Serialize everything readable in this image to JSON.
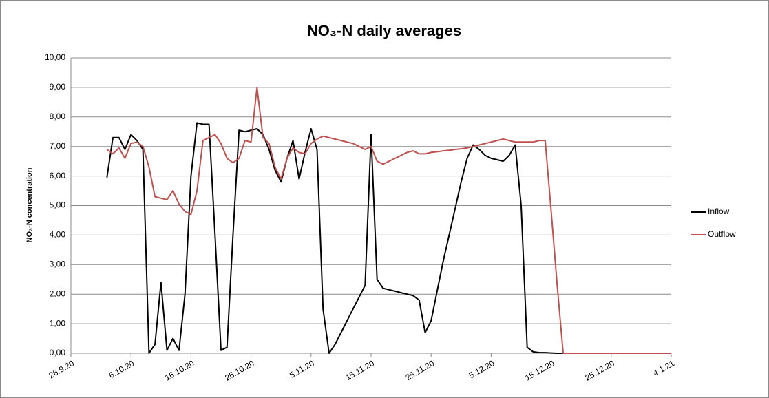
{
  "chart_data": {
    "type": "line",
    "title": "NO₃-N daily averages",
    "y_label": "NO₃-N concentration",
    "x": [
      "2020-10-02",
      "2020-10-03",
      "2020-10-04",
      "2020-10-05",
      "2020-10-06",
      "2020-10-07",
      "2020-10-08",
      "2020-10-09",
      "2020-10-10",
      "2020-10-11",
      "2020-10-12",
      "2020-10-13",
      "2020-10-14",
      "2020-10-15",
      "2020-10-16",
      "2020-10-17",
      "2020-10-18",
      "2020-10-19",
      "2020-10-20",
      "2020-10-21",
      "2020-10-22",
      "2020-10-23",
      "2020-10-24",
      "2020-10-25",
      "2020-10-26",
      "2020-10-27",
      "2020-10-28",
      "2020-10-29",
      "2020-10-30",
      "2020-10-31",
      "2020-11-01",
      "2020-11-02",
      "2020-11-03",
      "2020-11-04",
      "2020-11-05",
      "2020-11-06",
      "2020-11-07",
      "2020-11-08",
      "2020-11-09",
      "2020-11-10",
      "2020-11-11",
      "2020-11-12",
      "2020-11-13",
      "2020-11-14",
      "2020-11-15",
      "2020-11-16",
      "2020-11-17",
      "2020-11-18",
      "2020-11-19",
      "2020-11-20",
      "2020-11-21",
      "2020-11-22",
      "2020-11-23",
      "2020-11-24",
      "2020-11-25",
      "2020-11-26",
      "2020-11-27",
      "2020-11-28",
      "2020-11-29",
      "2020-11-30",
      "2020-12-01",
      "2020-12-02",
      "2020-12-03",
      "2020-12-04",
      "2020-12-05",
      "2020-12-06",
      "2020-12-07",
      "2020-12-08",
      "2020-12-09",
      "2020-12-10",
      "2020-12-11",
      "2020-12-12",
      "2020-12-13",
      "2020-12-14",
      "2020-12-15",
      "2020-12-16",
      "2020-12-17",
      "2021-01-04"
    ],
    "series": [
      {
        "name": "Inflow",
        "color": "#000000",
        "values": [
          5.95,
          7.3,
          7.3,
          6.9,
          7.4,
          7.2,
          6.9,
          0,
          0.3,
          2.4,
          0.1,
          0.5,
          0.1,
          2.0,
          6.0,
          7.8,
          7.75,
          7.75,
          4.0,
          0.1,
          0.2,
          4.0,
          7.55,
          7.5,
          7.55,
          7.6,
          7.4,
          6.9,
          6.2,
          5.8,
          6.6,
          7.2,
          5.9,
          6.8,
          7.6,
          6.9,
          1.5,
          0,
          0.3,
          0.7,
          1.1,
          1.5,
          1.9,
          2.3,
          7.4,
          2.5,
          2.2,
          2.15,
          2.1,
          2.05,
          2.0,
          1.95,
          1.8,
          0.7,
          1.1,
          2.1,
          3.1,
          4.0,
          4.9,
          5.8,
          6.6,
          7.05,
          6.9,
          6.7,
          6.6,
          6.55,
          6.5,
          6.7,
          7.05,
          5.0,
          0.2,
          0.05,
          0.02,
          0.02,
          0.01,
          0,
          0,
          0
        ]
      },
      {
        "name": "Outflow",
        "color": "#c0504d",
        "values": [
          6.9,
          6.75,
          6.95,
          6.6,
          7.1,
          7.15,
          7.0,
          6.3,
          5.3,
          5.25,
          5.2,
          5.5,
          5.05,
          4.8,
          4.7,
          5.5,
          7.2,
          7.3,
          7.4,
          7.1,
          6.6,
          6.45,
          6.6,
          7.2,
          7.15,
          9.0,
          7.3,
          7.1,
          6.3,
          5.9,
          6.6,
          6.95,
          6.8,
          6.75,
          7.1,
          7.25,
          7.35,
          7.3,
          7.25,
          7.2,
          7.15,
          7.1,
          7.0,
          6.9,
          7.0,
          6.5,
          6.4,
          6.5,
          6.6,
          6.7,
          6.8,
          6.85,
          6.75,
          6.75,
          6.8,
          6.82,
          6.85,
          6.87,
          6.9,
          6.92,
          6.95,
          7.0,
          7.05,
          7.1,
          7.15,
          7.2,
          7.25,
          7.2,
          7.15,
          7.15,
          7.15,
          7.15,
          7.2,
          7.2,
          4.8,
          2.3,
          0,
          0
        ]
      }
    ],
    "xlim": [
      "2020-09-26",
      "2021-01-04"
    ],
    "xticks": [
      {
        "value": "2020-09-26",
        "label": "26.9.20"
      },
      {
        "value": "2020-10-06",
        "label": "6.10.20"
      },
      {
        "value": "2020-10-16",
        "label": "16.10.20"
      },
      {
        "value": "2020-10-26",
        "label": "26.10.20"
      },
      {
        "value": "2020-11-05",
        "label": "5.11.20"
      },
      {
        "value": "2020-11-15",
        "label": "15.11.20"
      },
      {
        "value": "2020-11-25",
        "label": "25.11.20"
      },
      {
        "value": "2020-12-05",
        "label": "5.12.20"
      },
      {
        "value": "2020-12-15",
        "label": "15.12.20"
      },
      {
        "value": "2020-12-25",
        "label": "25.12.20"
      },
      {
        "value": "2021-01-04",
        "label": "4.1.21"
      }
    ],
    "ylim": [
      0,
      10
    ],
    "yticks": [
      {
        "value": 0,
        "label": "0,00"
      },
      {
        "value": 1,
        "label": "1,00"
      },
      {
        "value": 2,
        "label": "2,00"
      },
      {
        "value": 3,
        "label": "3,00"
      },
      {
        "value": 4,
        "label": "4,00"
      },
      {
        "value": 5,
        "label": "5,00"
      },
      {
        "value": 6,
        "label": "6,00"
      },
      {
        "value": 7,
        "label": "7,00"
      },
      {
        "value": 8,
        "label": "8,00"
      },
      {
        "value": 9,
        "label": "9,00"
      },
      {
        "value": 10,
        "label": "10,00"
      }
    ],
    "grid": true,
    "legend": "right"
  }
}
